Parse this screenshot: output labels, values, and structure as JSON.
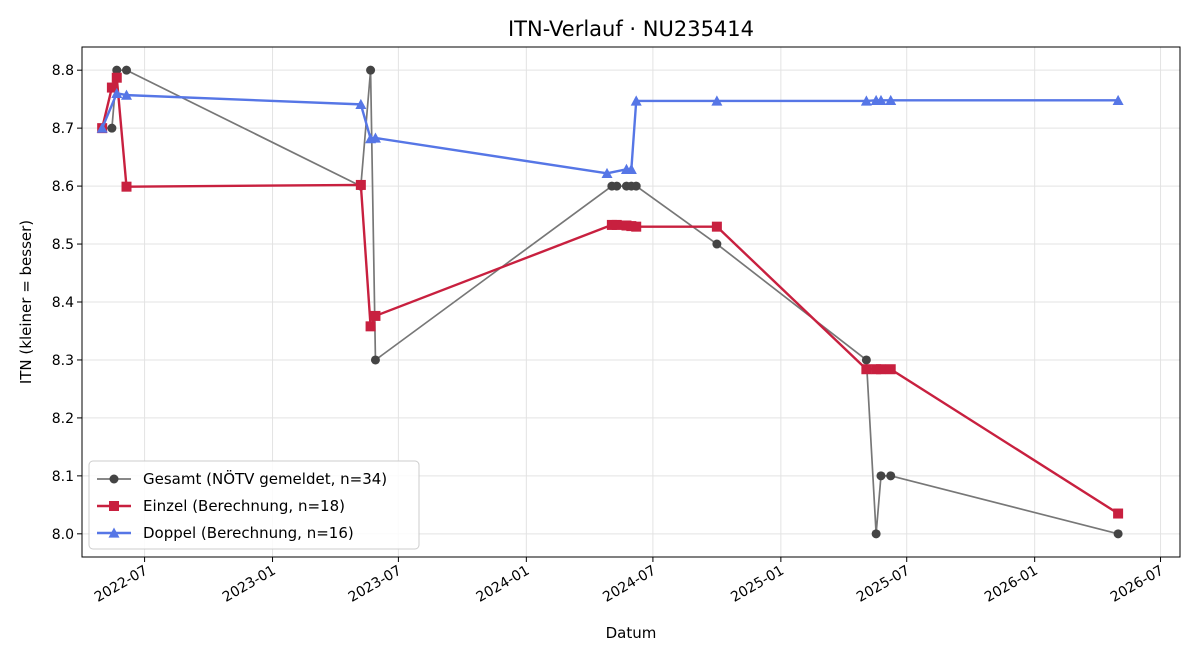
{
  "chart_data": {
    "type": "line",
    "title": "ITN-Verlauf · NU235414",
    "xlabel": "Datum",
    "ylabel": "ITN  (kleiner = besser)",
    "x_type": "date",
    "xlim": [
      "2022-04-02",
      "2026-07-29"
    ],
    "ylim": [
      7.96,
      8.84
    ],
    "x_ticks": [
      "2022-07-01",
      "2023-01-01",
      "2023-07-01",
      "2024-01-01",
      "2024-07-01",
      "2025-01-01",
      "2025-07-01",
      "2026-01-01",
      "2026-07-01"
    ],
    "x_tick_labels": [
      "2022-07",
      "2023-01",
      "2023-07",
      "2024-01",
      "2024-07",
      "2025-01",
      "2025-07",
      "2026-01",
      "2026-07"
    ],
    "y_ticks": [
      8.0,
      8.1,
      8.2,
      8.3,
      8.4,
      8.5,
      8.6,
      8.7,
      8.8
    ],
    "y_tick_labels": [
      "8.0",
      "8.1",
      "8.2",
      "8.3",
      "8.4",
      "8.5",
      "8.6",
      "8.7",
      "8.8"
    ],
    "grid": true,
    "legend_position": "lower-left",
    "series": [
      {
        "name": "Gesamt (NÖTV gemeldet, n=34)",
        "color": "#777777",
        "marker_color": "#444444",
        "marker": "circle",
        "line_width": 1.7,
        "points": [
          {
            "x": "2022-05-01",
            "y": 8.7
          },
          {
            "x": "2022-05-15",
            "y": 8.7
          },
          {
            "x": "2022-05-22",
            "y": 8.8
          },
          {
            "x": "2022-06-05",
            "y": 8.8
          },
          {
            "x": "2023-05-08",
            "y": 8.6
          },
          {
            "x": "2023-05-22",
            "y": 8.8
          },
          {
            "x": "2023-05-29",
            "y": 8.3
          },
          {
            "x": "2024-05-03",
            "y": 8.6
          },
          {
            "x": "2024-05-10",
            "y": 8.6
          },
          {
            "x": "2024-05-24",
            "y": 8.6
          },
          {
            "x": "2024-05-31",
            "y": 8.6
          },
          {
            "x": "2024-06-07",
            "y": 8.6
          },
          {
            "x": "2024-10-01",
            "y": 8.5
          },
          {
            "x": "2025-05-04",
            "y": 8.3
          },
          {
            "x": "2025-05-18",
            "y": 8.0
          },
          {
            "x": "2025-05-25",
            "y": 8.1
          },
          {
            "x": "2025-06-08",
            "y": 8.1
          },
          {
            "x": "2026-05-01",
            "y": 8.0
          }
        ]
      },
      {
        "name": "Einzel (Berechnung, n=18)",
        "color": "#c8203f",
        "marker_color": "#c8203f",
        "marker": "square",
        "line_width": 2.4,
        "points": [
          {
            "x": "2022-05-01",
            "y": 8.7
          },
          {
            "x": "2022-05-15",
            "y": 8.77
          },
          {
            "x": "2022-05-22",
            "y": 8.787
          },
          {
            "x": "2022-06-05",
            "y": 8.599
          },
          {
            "x": "2023-05-08",
            "y": 8.602
          },
          {
            "x": "2023-05-22",
            "y": 8.358
          },
          {
            "x": "2023-05-29",
            "y": 8.376
          },
          {
            "x": "2024-05-03",
            "y": 8.533
          },
          {
            "x": "2024-05-10",
            "y": 8.533
          },
          {
            "x": "2024-05-24",
            "y": 8.532
          },
          {
            "x": "2024-05-31",
            "y": 8.531
          },
          {
            "x": "2024-06-07",
            "y": 8.53
          },
          {
            "x": "2024-10-01",
            "y": 8.53
          },
          {
            "x": "2025-05-04",
            "y": 8.284
          },
          {
            "x": "2025-05-18",
            "y": 8.284
          },
          {
            "x": "2025-05-25",
            "y": 8.284
          },
          {
            "x": "2025-06-08",
            "y": 8.284
          },
          {
            "x": "2026-05-01",
            "y": 8.035
          }
        ]
      },
      {
        "name": "Doppel (Berechnung, n=16)",
        "color": "#5676e6",
        "marker_color": "#5676e6",
        "marker": "triangle",
        "line_width": 2.4,
        "points": [
          {
            "x": "2022-05-01",
            "y": 8.7
          },
          {
            "x": "2022-05-22",
            "y": 8.76
          },
          {
            "x": "2022-06-05",
            "y": 8.757
          },
          {
            "x": "2023-05-08",
            "y": 8.741
          },
          {
            "x": "2023-05-22",
            "y": 8.682
          },
          {
            "x": "2023-05-29",
            "y": 8.683
          },
          {
            "x": "2024-04-26",
            "y": 8.622
          },
          {
            "x": "2024-05-24",
            "y": 8.629
          },
          {
            "x": "2024-05-31",
            "y": 8.629
          },
          {
            "x": "2024-06-07",
            "y": 8.747
          },
          {
            "x": "2024-10-01",
            "y": 8.747
          },
          {
            "x": "2025-05-04",
            "y": 8.747
          },
          {
            "x": "2025-05-18",
            "y": 8.748
          },
          {
            "x": "2025-05-25",
            "y": 8.748
          },
          {
            "x": "2025-06-08",
            "y": 8.748
          },
          {
            "x": "2026-05-01",
            "y": 8.748
          }
        ]
      }
    ]
  }
}
